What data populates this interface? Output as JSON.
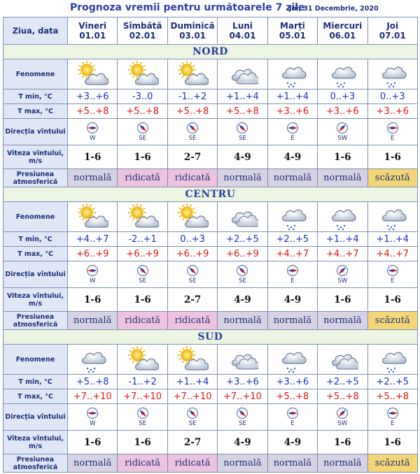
{
  "title": "Prognoza vremii pentru următoarele 7 zile",
  "date": "Joi, 31 Decembrie, 2020",
  "colors": {
    "title": "#2a3fa0",
    "tmin": "#1530c4",
    "tmax": "#e21414",
    "normala": "#d7d3e4",
    "ridicata": "#efc2e0",
    "scazuta": "#f4d675",
    "region_bg": "#ecf4e2",
    "label_bg": "#dfe7f6"
  },
  "header_label": "Ziua, data",
  "days": [
    {
      "name": "Vineri",
      "date": "01.01"
    },
    {
      "name": "Sîmbătă",
      "date": "02.01"
    },
    {
      "name": "Duminică",
      "date": "03.01"
    },
    {
      "name": "Luni",
      "date": "04.01"
    },
    {
      "name": "Marți",
      "date": "05.01"
    },
    {
      "name": "Miercuri",
      "date": "06.01"
    },
    {
      "name": "Joi",
      "date": "07.01"
    }
  ],
  "row_labels": {
    "fenomene": "Fenomene",
    "tmin": "T min, °C",
    "tmax": "T max, °C",
    "directia": "Direcția vîntului",
    "viteza": "Viteza vîntului, m/s",
    "presiunea": "Presiunea atmosferică"
  },
  "regions": [
    {
      "name": "NORD",
      "icons": [
        "sun-cloud-icon",
        "sun-cloud-icon",
        "sun-cloud-icon",
        "cloud-icon",
        "cloud-snow-icon",
        "cloud-snow-icon",
        "cloud-snow-icon"
      ],
      "tmin": [
        "+3..+6",
        "-3..0",
        "-1..+2",
        "+1..+4",
        "+1..+4",
        "0..+3",
        "0..+3"
      ],
      "tmax": [
        "+5..+8",
        "+5..+8",
        "+5..+8",
        "+5..+8",
        "+3..+6",
        "+3..+6",
        "+3..+6"
      ],
      "dir": [
        "W",
        "SE",
        "SE",
        "SE",
        "E",
        "SW",
        "E"
      ],
      "viteza": [
        "1-6",
        "1-6",
        "2-7",
        "4-9",
        "4-9",
        "1-6",
        "1-6"
      ],
      "pres": [
        "normală",
        "ridicată",
        "ridicată",
        "normală",
        "normală",
        "normală",
        "scăzută"
      ]
    },
    {
      "name": "CENTRU",
      "icons": [
        "sun-cloud-icon",
        "sun-cloud-icon",
        "sun-cloud-icon",
        "cloud-icon",
        "cloud-snow-icon",
        "cloud-snow-icon",
        "cloud-snow-icon"
      ],
      "tmin": [
        "+4..+7",
        "-2..+1",
        "0..+3",
        "+2..+5",
        "+2..+5",
        "+1..+4",
        "+1..+4"
      ],
      "tmax": [
        "+6..+9",
        "+6..+9",
        "+6..+9",
        "+6..+9",
        "+4..+7",
        "+4..+7",
        "+4..+7"
      ],
      "dir": [
        "W",
        "SE",
        "SE",
        "SE",
        "E",
        "SW",
        "E"
      ],
      "viteza": [
        "1-6",
        "1-6",
        "2-7",
        "4-9",
        "4-9",
        "1-6",
        "1-6"
      ],
      "pres": [
        "normală",
        "ridicată",
        "ridicată",
        "normală",
        "normală",
        "normală",
        "scăzută"
      ]
    },
    {
      "name": "SUD",
      "icons": [
        "cloud-snow-icon",
        "sun-cloud-icon",
        "sun-cloud-icon",
        "cloud-icon",
        "cloud-snow-icon",
        "cloud-icon",
        "cloud-snow-icon"
      ],
      "tmin": [
        "+5..+8",
        "-1..+2",
        "+1..+4",
        "+3..+6",
        "+3..+6",
        "+2..+5",
        "+2..+5"
      ],
      "tmax": [
        "+7..+10",
        "+7..+10",
        "+7..+10",
        "+7..+10",
        "+5..+8",
        "+5..+8",
        "+5..+8"
      ],
      "dir": [
        "W",
        "SE",
        "SE",
        "SE",
        "E",
        "SW",
        "E"
      ],
      "viteza": [
        "1-6",
        "1-6",
        "2-7",
        "4-9",
        "4-9",
        "1-6",
        "1-6"
      ],
      "pres": [
        "normală",
        "ridicată",
        "ridicată",
        "normală",
        "normală",
        "normală",
        "scăzută"
      ]
    }
  ]
}
